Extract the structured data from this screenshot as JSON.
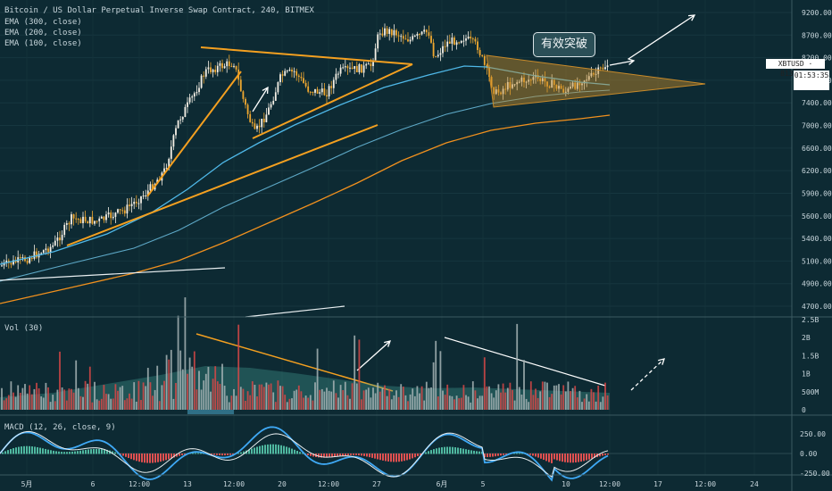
{
  "chart_data": [
    {
      "type": "line",
      "title": "Bitcoin / US Dollar Perpetual Inverse Swap Contract, 240, BITMEX",
      "legend": [
        "EMA (300, close)",
        "EMA (200, close)",
        "EMA (100, close)"
      ],
      "annotation": "有效突破",
      "symbol_tag": "XBTUSD · 8132.00",
      "countdown": "01:53:35",
      "ylim": [
        4600,
        9300
      ],
      "y_ticks": [
        "9200.00",
        "8700.00",
        "8200.00",
        "7900.00",
        "7400.00",
        "7000.00",
        "6600.00",
        "6200.00",
        "5900.00",
        "5600.00",
        "5400.00",
        "5100.00",
        "4900.00",
        "4700.00"
      ],
      "x_ticks": [
        "5月",
        "6",
        "12:00",
        "13",
        "12:00",
        "20",
        "12:00",
        "27",
        "6月",
        "5",
        "10",
        "12:00",
        "17",
        "12:00",
        "24"
      ],
      "last_price": 8132.0
    },
    {
      "type": "bar",
      "title": "Vol (30)",
      "y_ticks": [
        "2.5B",
        "2B",
        "1.5B",
        "1B",
        "500M",
        "0"
      ],
      "ylim": [
        0,
        2.5
      ]
    },
    {
      "type": "line",
      "title": "MACD (12, 26, close, 9)",
      "y_ticks": [
        "250.00",
        "0.00",
        "-250.00"
      ],
      "ylim": [
        -350,
        350
      ]
    }
  ]
}
